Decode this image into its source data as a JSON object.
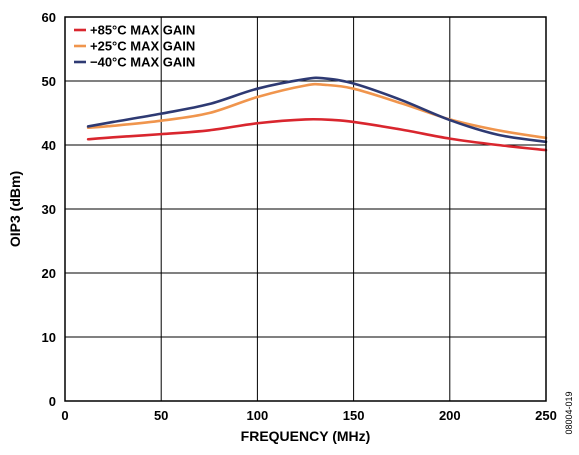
{
  "chart_data": {
    "type": "line",
    "xlabel": "FREQUENCY (MHz)",
    "ylabel": "OIP3 (dBm)",
    "xlim": [
      0,
      250
    ],
    "ylim": [
      0,
      60
    ],
    "xticks": [
      0,
      50,
      100,
      150,
      200,
      250
    ],
    "yticks": [
      0,
      10,
      20,
      30,
      40,
      50,
      60
    ],
    "grid": true,
    "legend_position": "top-left",
    "figure_id": "08004-019",
    "series": [
      {
        "name": "+85°C MAX GAIN",
        "color": "#d9262e",
        "x": [
          12,
          25,
          50,
          75,
          100,
          125,
          140,
          150,
          175,
          200,
          225,
          250
        ],
        "y": [
          40.9,
          41.2,
          41.7,
          42.3,
          43.4,
          44.0,
          43.9,
          43.6,
          42.4,
          41.0,
          40.0,
          39.2
        ]
      },
      {
        "name": "+25°C MAX GAIN",
        "color": "#f0954d",
        "x": [
          12,
          25,
          50,
          75,
          100,
          125,
          135,
          150,
          175,
          200,
          225,
          250
        ],
        "y": [
          42.7,
          43.0,
          43.8,
          45.0,
          47.5,
          49.3,
          49.4,
          48.8,
          46.5,
          44.0,
          42.3,
          41.1
        ]
      },
      {
        "name": "−40°C MAX GAIN",
        "color": "#2e3a73",
        "x": [
          12,
          25,
          50,
          75,
          100,
          125,
          135,
          150,
          175,
          200,
          225,
          250
        ],
        "y": [
          42.9,
          43.6,
          44.9,
          46.4,
          48.8,
          50.3,
          50.4,
          49.6,
          47.0,
          43.9,
          41.6,
          40.5
        ]
      }
    ]
  }
}
